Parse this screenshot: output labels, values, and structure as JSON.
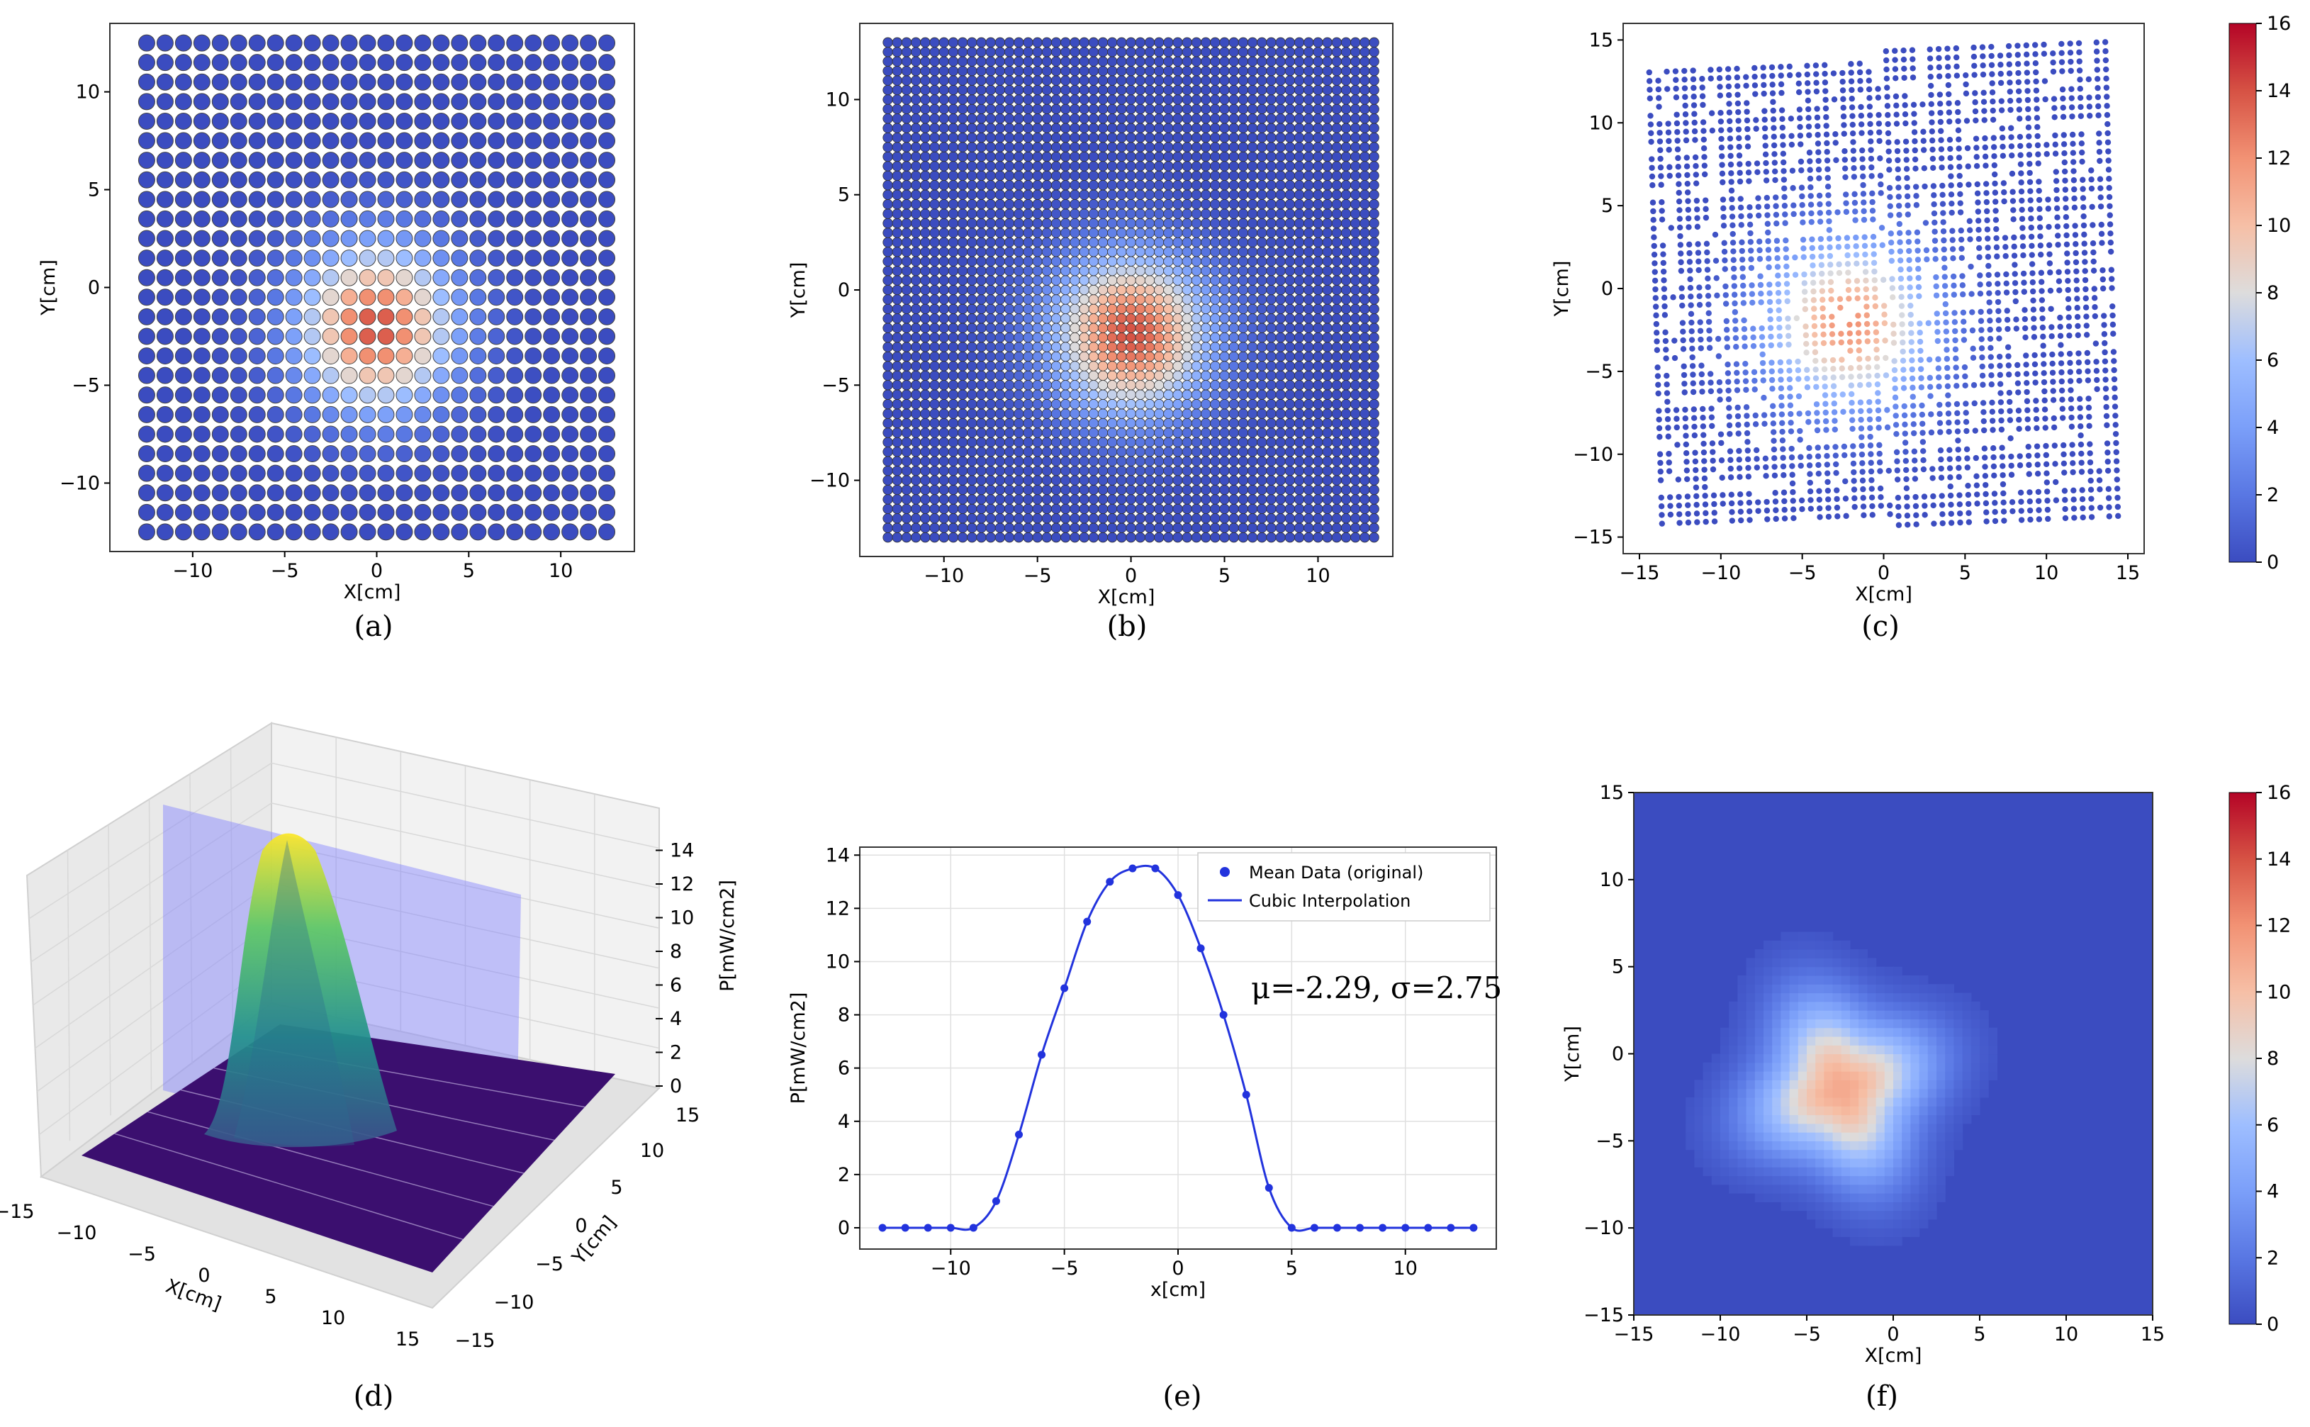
{
  "figure": {
    "panels": [
      "(a)",
      "(b)",
      "(c)",
      "(d)",
      "(e)",
      "(f)"
    ],
    "colorbar_ticks": [
      "0",
      "2",
      "4",
      "6",
      "8",
      "10",
      "12",
      "14",
      "16"
    ],
    "colormap_low": "#3b4cc0",
    "colormap_high": "#b40426"
  },
  "chart_data": [
    {
      "id": "a",
      "type": "scatter",
      "caption": "(a)",
      "xlabel": "X[cm]",
      "ylabel": "Y[cm]",
      "xlim": [
        -14.5,
        14
      ],
      "ylim": [
        -13.5,
        13.5
      ],
      "xticks": [
        -10,
        -5,
        0,
        5,
        10
      ],
      "yticks": [
        -10,
        -5,
        0,
        5,
        10
      ],
      "grid": {
        "xmin": -12.5,
        "xmax": 12.5,
        "ymin": -12.5,
        "ymax": 12.5,
        "step": 1
      },
      "field": {
        "mu_x": 0,
        "mu_y": -2,
        "sigma": 2.9,
        "peak": 14,
        "vmin": 0,
        "vmax": 16
      }
    },
    {
      "id": "b",
      "type": "scatter",
      "caption": "(b)",
      "xlabel": "X[cm]",
      "ylabel": "Y[cm]",
      "xlim": [
        -14.5,
        14
      ],
      "ylim": [
        -14,
        14
      ],
      "xticks": [
        -10,
        -5,
        0,
        5,
        10
      ],
      "yticks": [
        -10,
        -5,
        0,
        5,
        10
      ],
      "grid": {
        "xmin": -13,
        "xmax": 13,
        "ymin": -13,
        "ymax": 13,
        "step": 0.5
      },
      "field": {
        "mu_x": 0,
        "mu_y": -2.3,
        "sigma": 2.9,
        "peak": 14,
        "vmin": 0,
        "vmax": 16
      }
    },
    {
      "id": "c",
      "type": "scatter",
      "caption": "(c)",
      "xlabel": "X[cm]",
      "ylabel": "Y[cm]",
      "xlim": [
        -16,
        16
      ],
      "ylim": [
        -16,
        16
      ],
      "xticks": [
        -15,
        -10,
        -5,
        0,
        5,
        10,
        15
      ],
      "yticks": [
        -15,
        -10,
        -5,
        0,
        5,
        10,
        15
      ],
      "grid": {
        "xmin": -13,
        "xmax": 13,
        "ymin": -13,
        "ymax": 13,
        "step": 0.5
      },
      "field": {
        "mu_x": -2,
        "mu_y": -2,
        "sigma": 3.3,
        "peak": 12,
        "vmin": 0,
        "vmax": 16
      },
      "colorbar": true
    },
    {
      "id": "d",
      "type": "surface3d",
      "caption": "(d)",
      "xlabel": "X[cm]",
      "ylabel": "Y[cm]",
      "zlabel": "P[mW/cm2]",
      "xticks": [
        -15,
        -10,
        -5,
        0,
        5,
        10,
        15
      ],
      "yticks": [
        -15,
        -10,
        -5,
        0,
        5,
        10,
        15
      ],
      "zticks": [
        0,
        2,
        4,
        6,
        8,
        10,
        12,
        14
      ],
      "field": {
        "mu_x": -2.29,
        "mu_y": -2,
        "sigma": 2.75,
        "peak": 13.5
      }
    },
    {
      "id": "e",
      "type": "line",
      "caption": "(e)",
      "xlabel": "x[cm]",
      "ylabel": "P[mW/cm2]",
      "xlim": [
        -14,
        14
      ],
      "ylim": [
        -0.8,
        14.3
      ],
      "xticks": [
        -10,
        -5,
        0,
        5,
        10
      ],
      "yticks": [
        0,
        2,
        4,
        6,
        8,
        10,
        12,
        14
      ],
      "annotation": "μ=-2.29, σ=2.75",
      "series": [
        {
          "name": "Mean Data (original)",
          "kind": "points",
          "x": [
            -13,
            -12,
            -11,
            -10,
            -9,
            -8,
            -7,
            -6,
            -5,
            -4,
            -3,
            -2,
            -1,
            0,
            1,
            2,
            3,
            4,
            5,
            6,
            7,
            8,
            9,
            10,
            11,
            12,
            13
          ],
          "values": [
            0,
            0,
            0,
            0,
            0,
            1,
            3.5,
            6.5,
            9,
            11.5,
            13,
            13.5,
            13.5,
            12.5,
            10.5,
            8,
            5,
            1.5,
            0,
            0,
            0,
            0,
            0,
            0,
            0,
            0,
            0
          ]
        },
        {
          "name": "Cubic Interpolation",
          "kind": "line",
          "color": "#2233dd"
        }
      ]
    },
    {
      "id": "f",
      "type": "heatmap",
      "caption": "(f)",
      "xlabel": "X[cm]",
      "ylabel": "Y[cm]",
      "xlim": [
        -15,
        15
      ],
      "ylim": [
        -15,
        15
      ],
      "xticks": [
        -15,
        -10,
        -5,
        0,
        5,
        10,
        15
      ],
      "yticks": [
        -15,
        -10,
        -5,
        0,
        5,
        10,
        15
      ],
      "field": {
        "mu_x": -3,
        "mu_y": -2,
        "sigma": 3.3,
        "peak": 11,
        "vmin": 0,
        "vmax": 16
      },
      "colorbar": true
    }
  ]
}
